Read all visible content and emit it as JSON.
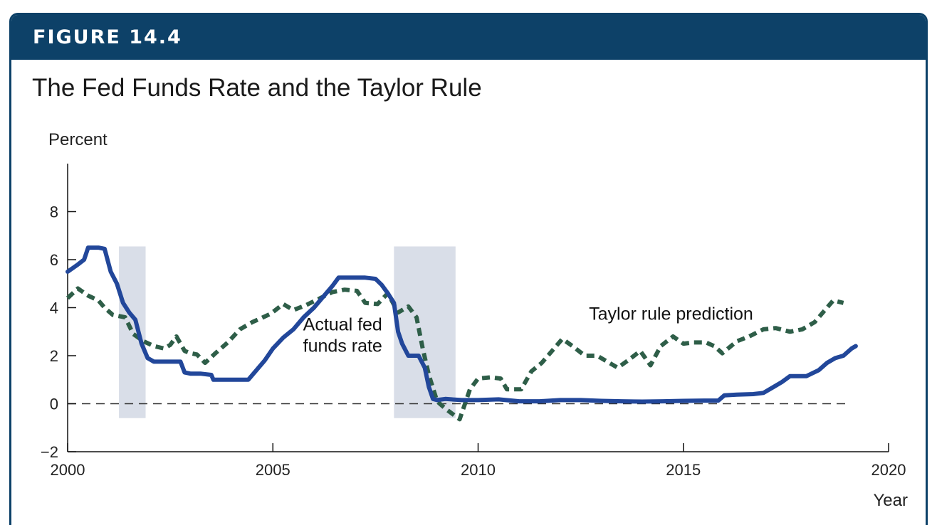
{
  "figure_label": "FIGURE 14.4",
  "chart_data": {
    "type": "line",
    "title": "The Fed Funds Rate and the Taylor Rule",
    "ylabel": "Percent",
    "xlabel": "Year",
    "xlim": [
      2000,
      2020
    ],
    "ylim": [
      -2,
      10
    ],
    "x_ticks": [
      2000,
      2005,
      2010,
      2015,
      2020
    ],
    "y_ticks": [
      -2,
      0,
      2,
      4,
      6,
      8
    ],
    "y_tick_labels": [
      "−2",
      "0",
      "2",
      "4",
      "6",
      "8"
    ],
    "zero_line": "dashed",
    "grid": false,
    "recession_shading": [
      {
        "start": 2001.25,
        "end": 2001.9
      },
      {
        "start": 2007.95,
        "end": 2009.45
      }
    ],
    "shading_range": [
      -0.6,
      6.55
    ],
    "series": [
      {
        "name": "Actual fed funds rate",
        "style": "solid",
        "color": "#22479a",
        "annotation_lines": [
          "Actual fed",
          "funds rate"
        ],
        "annotation_anchor": [
          2006.7,
          3.05
        ],
        "x": [
          2000.0,
          2000.25,
          2000.4,
          2000.5,
          2000.75,
          2000.9,
          2001.05,
          2001.2,
          2001.35,
          2001.5,
          2001.65,
          2001.8,
          2001.95,
          2002.1,
          2002.3,
          2002.6,
          2002.75,
          2002.85,
          2003.0,
          2003.25,
          2003.5,
          2003.55,
          2003.8,
          2004.05,
          2004.4,
          2004.6,
          2004.8,
          2005.0,
          2005.25,
          2005.5,
          2005.75,
          2006.0,
          2006.25,
          2006.45,
          2006.6,
          2006.75,
          2007.0,
          2007.25,
          2007.5,
          2007.65,
          2007.8,
          2007.95,
          2008.05,
          2008.15,
          2008.3,
          2008.55,
          2008.7,
          2008.8,
          2008.9,
          2009.0,
          2009.2,
          2009.6,
          2009.8,
          2010.0,
          2010.5,
          2011.0,
          2011.5,
          2012.0,
          2012.5,
          2013.0,
          2013.5,
          2014.0,
          2014.5,
          2015.0,
          2015.5,
          2015.85,
          2016.0,
          2016.3,
          2016.7,
          2016.95,
          2017.2,
          2017.4,
          2017.6,
          2018.0,
          2018.3,
          2018.5,
          2018.7,
          2018.9,
          2019.1,
          2019.2
        ],
        "y": [
          5.5,
          5.8,
          6.0,
          6.5,
          6.5,
          6.45,
          5.5,
          5.0,
          4.2,
          3.8,
          3.5,
          2.5,
          1.9,
          1.75,
          1.75,
          1.75,
          1.75,
          1.3,
          1.25,
          1.25,
          1.2,
          1.0,
          1.0,
          1.0,
          1.0,
          1.4,
          1.8,
          2.3,
          2.75,
          3.1,
          3.6,
          4.0,
          4.5,
          4.9,
          5.25,
          5.25,
          5.25,
          5.25,
          5.2,
          4.95,
          4.6,
          4.2,
          3.0,
          2.5,
          2.0,
          2.0,
          1.5,
          0.7,
          0.2,
          0.15,
          0.2,
          0.15,
          0.15,
          0.15,
          0.18,
          0.1,
          0.1,
          0.15,
          0.15,
          0.12,
          0.1,
          0.09,
          0.1,
          0.12,
          0.13,
          0.13,
          0.35,
          0.38,
          0.4,
          0.45,
          0.7,
          0.9,
          1.15,
          1.15,
          1.4,
          1.7,
          1.9,
          2.0,
          2.3,
          2.4
        ]
      },
      {
        "name": "Taylor rule prediction",
        "style": "dashed",
        "color": "#2e5e48",
        "annotation_lines": [
          "Taylor rule prediction"
        ],
        "annotation_anchor": [
          2012.7,
          3.5
        ],
        "x": [
          2000.0,
          2000.25,
          2000.5,
          2000.75,
          2000.9,
          2001.1,
          2001.4,
          2001.6,
          2001.85,
          2002.1,
          2002.35,
          2002.5,
          2002.65,
          2002.85,
          2003.0,
          2003.15,
          2003.35,
          2003.6,
          2003.9,
          2004.2,
          2004.5,
          2004.7,
          2004.95,
          2005.25,
          2005.5,
          2005.8,
          2006.1,
          2006.45,
          2006.75,
          2007.05,
          2007.25,
          2007.55,
          2007.8,
          2008.05,
          2008.3,
          2008.5,
          2008.65,
          2008.8,
          2009.0,
          2009.2,
          2009.55,
          2009.8,
          2010.0,
          2010.3,
          2010.55,
          2010.7,
          2011.05,
          2011.3,
          2011.55,
          2011.8,
          2012.05,
          2012.3,
          2012.6,
          2012.9,
          2013.1,
          2013.4,
          2013.65,
          2013.95,
          2014.2,
          2014.45,
          2014.75,
          2015.0,
          2015.25,
          2015.55,
          2015.75,
          2015.95,
          2016.3,
          2016.6,
          2016.95,
          2017.25,
          2017.6,
          2017.9,
          2018.2,
          2018.45,
          2018.65,
          2018.9
        ],
        "y": [
          4.4,
          4.8,
          4.5,
          4.3,
          4.0,
          3.7,
          3.6,
          2.9,
          2.6,
          2.4,
          2.3,
          2.45,
          2.8,
          2.2,
          2.1,
          2.05,
          1.7,
          2.1,
          2.55,
          3.1,
          3.4,
          3.55,
          3.75,
          4.15,
          3.9,
          4.1,
          4.35,
          4.65,
          4.75,
          4.7,
          4.2,
          4.15,
          4.6,
          3.8,
          4.05,
          3.6,
          2.3,
          1.2,
          0.1,
          -0.2,
          -0.65,
          0.6,
          1.05,
          1.1,
          1.05,
          0.6,
          0.6,
          1.35,
          1.7,
          2.2,
          2.7,
          2.4,
          2.0,
          2.0,
          1.8,
          1.5,
          1.8,
          2.2,
          1.6,
          2.4,
          2.8,
          2.5,
          2.55,
          2.55,
          2.4,
          2.1,
          2.6,
          2.8,
          3.1,
          3.15,
          3.0,
          3.1,
          3.4,
          3.9,
          4.3,
          4.2
        ]
      }
    ]
  }
}
